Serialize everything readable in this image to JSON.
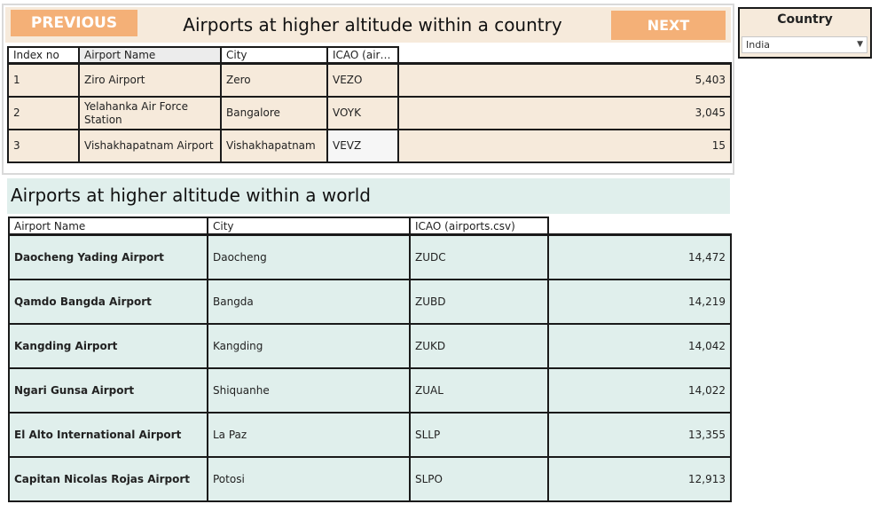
{
  "country_panel": {
    "prev_label": "PREVIOUS",
    "next_label": "NEXT",
    "title": "Airports at higher altitude within a country",
    "headers": [
      "Index no",
      "Airport Name",
      "City",
      "ICAO (airpo.."
    ],
    "rows": [
      {
        "index": "1",
        "name": "Ziro Airport",
        "city": "Zero",
        "icao": "VEZO",
        "altitude": "5,403"
      },
      {
        "index": "2",
        "name": "Yelahanka Air Force Station",
        "city": "Bangalore",
        "icao": "VOYK",
        "altitude": "3,045"
      },
      {
        "index": "3",
        "name": "Vishakhapatnam Airport",
        "city": "Vishakhapatnam",
        "icao": "VEVZ",
        "altitude": "15"
      }
    ]
  },
  "world_panel": {
    "title": "Airports at higher altitude within a world",
    "headers": [
      "Airport Name",
      "City",
      "ICAO (airports.csv)"
    ],
    "rows": [
      {
        "name": "Daocheng Yading Airport",
        "city": "Daocheng",
        "icao": "ZUDC",
        "altitude": "14,472"
      },
      {
        "name": "Qamdo Bangda Airport",
        "city": "Bangda",
        "icao": "ZUBD",
        "altitude": "14,219"
      },
      {
        "name": "Kangding Airport",
        "city": "Kangding",
        "icao": "ZUKD",
        "altitude": "14,042"
      },
      {
        "name": "Ngari Gunsa Airport",
        "city": "Shiquanhe",
        "icao": "ZUAL",
        "altitude": "14,022"
      },
      {
        "name": "El Alto International Airport",
        "city": "La Paz",
        "icao": "SLLP",
        "altitude": "13,355"
      },
      {
        "name": "Capitan Nicolas Rojas Airport",
        "city": "Potosi",
        "icao": "SLPO",
        "altitude": "12,913"
      }
    ]
  },
  "filter": {
    "title": "Country",
    "selected": "India",
    "arrow_icon": "dropdown-arrow-icon"
  },
  "colors": {
    "accent_button": "#f4b077",
    "country_band": "#f6eadb",
    "world_band": "#e0efec"
  }
}
